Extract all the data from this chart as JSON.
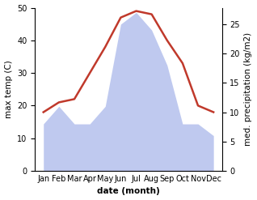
{
  "months": [
    "Jan",
    "Feb",
    "Mar",
    "Apr",
    "May",
    "Jun",
    "Jul",
    "Aug",
    "Sep",
    "Oct",
    "Nov",
    "Dec"
  ],
  "temperature": [
    18,
    21,
    22,
    30,
    38,
    47,
    49,
    48,
    40,
    33,
    20,
    18
  ],
  "precipitation": [
    8,
    11,
    8,
    8,
    11,
    25,
    27,
    24,
    18,
    8,
    8,
    6
  ],
  "temp_color": "#c0392b",
  "precip_color": "#b8c4ee",
  "left_ylim": [
    0,
    50
  ],
  "right_ylim": [
    0,
    27.8
  ],
  "left_yticks": [
    0,
    10,
    20,
    30,
    40,
    50
  ],
  "right_yticks": [
    0,
    5,
    10,
    15,
    20,
    25
  ],
  "left_ylabel": "max temp (C)",
  "right_ylabel": "med. precipitation (kg/m2)",
  "xlabel": "date (month)",
  "background_color": "#ffffff",
  "temp_linewidth": 1.8,
  "label_fontsize": 7.5,
  "tick_fontsize": 7
}
